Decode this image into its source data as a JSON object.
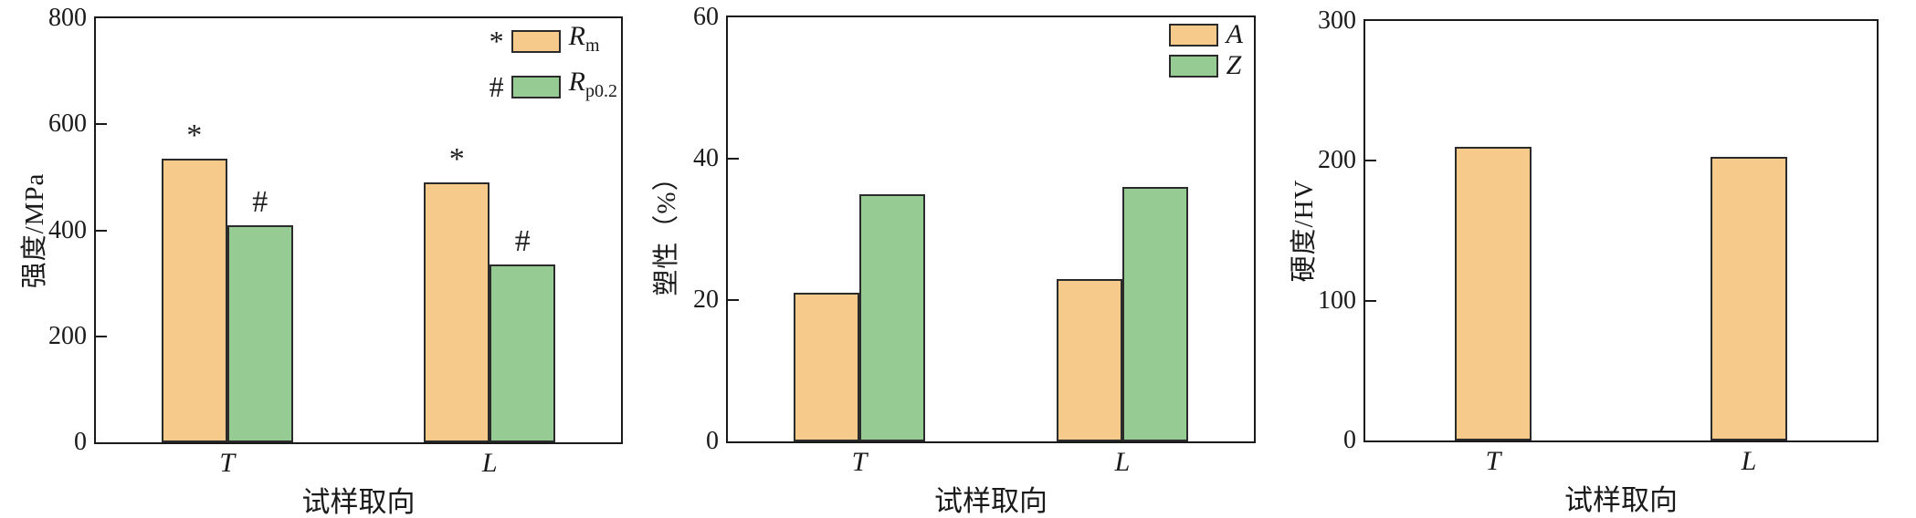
{
  "figure": {
    "background": "#ffffff",
    "axis_color": "#1a1a1a",
    "bar_border_color": "#2b2b2b",
    "palette": {
      "orange": "#F5CA8A",
      "green": "#96CB93"
    }
  },
  "chart_data": [
    {
      "type": "bar",
      "title": "",
      "xlabel": "试样取向",
      "ylabel": "强度/MPa",
      "categories": [
        "T",
        "L"
      ],
      "ylim": [
        0,
        800
      ],
      "yticks": [
        0,
        200,
        400,
        600,
        800
      ],
      "grid": false,
      "legend_position": "upper right",
      "series": [
        {
          "name": "Rm",
          "label_base": "R",
          "label_sub": "m",
          "marker": "*",
          "color_key": "orange",
          "values": [
            535,
            490
          ]
        },
        {
          "name": "Rp0.2",
          "label_base": "R",
          "label_sub": "p0.2",
          "marker": "#",
          "color_key": "green",
          "values": [
            410,
            335
          ]
        }
      ]
    },
    {
      "type": "bar",
      "title": "",
      "xlabel": "试样取向",
      "ylabel": "塑性（%）",
      "categories": [
        "T",
        "L"
      ],
      "ylim": [
        0,
        60
      ],
      "yticks": [
        0,
        20,
        40,
        60
      ],
      "grid": false,
      "legend_position": "upper right",
      "series": [
        {
          "name": "A",
          "label_base": "A",
          "label_sub": "",
          "marker": "",
          "color_key": "orange",
          "values": [
            21,
            23
          ]
        },
        {
          "name": "Z",
          "label_base": "Z",
          "label_sub": "",
          "marker": "",
          "color_key": "green",
          "values": [
            35,
            36
          ]
        }
      ]
    },
    {
      "type": "bar",
      "title": "",
      "xlabel": "试样取向",
      "ylabel": "硬度/HV",
      "categories": [
        "T",
        "L"
      ],
      "ylim": [
        0,
        300
      ],
      "yticks": [
        0,
        100,
        200,
        300
      ],
      "grid": false,
      "legend_position": "none",
      "series": [
        {
          "name": "HV",
          "label_base": "",
          "label_sub": "",
          "marker": "",
          "color_key": "orange",
          "values": [
            210,
            203
          ]
        }
      ]
    }
  ]
}
